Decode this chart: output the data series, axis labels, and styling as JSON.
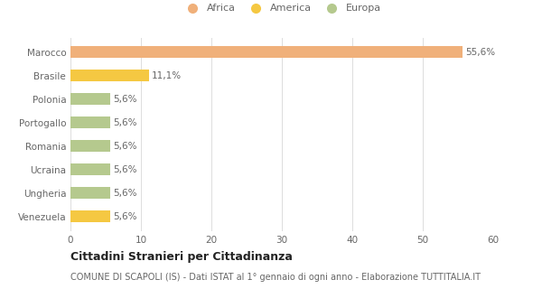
{
  "categories": [
    "Venezuela",
    "Ungheria",
    "Ucraina",
    "Romania",
    "Portogallo",
    "Polonia",
    "Brasile",
    "Marocco"
  ],
  "values": [
    5.6,
    5.6,
    5.6,
    5.6,
    5.6,
    5.6,
    11.1,
    55.6
  ],
  "colors": [
    "#f5c842",
    "#b5c98e",
    "#b5c98e",
    "#b5c98e",
    "#b5c98e",
    "#b5c98e",
    "#f5c842",
    "#f0b07a"
  ],
  "labels": [
    "5,6%",
    "5,6%",
    "5,6%",
    "5,6%",
    "5,6%",
    "5,6%",
    "11,1%",
    "55,6%"
  ],
  "legend_labels": [
    "Africa",
    "America",
    "Europa"
  ],
  "legend_colors": [
    "#f0b07a",
    "#f5c842",
    "#b5c98e"
  ],
  "title": "Cittadini Stranieri per Cittadinanza",
  "subtitle": "COMUNE DI SCAPOLI (IS) - Dati ISTAT al 1° gennaio di ogni anno - Elaborazione TUTTITALIA.IT",
  "xlim": [
    0,
    60
  ],
  "xticks": [
    0,
    10,
    20,
    30,
    40,
    50,
    60
  ],
  "background_color": "#ffffff",
  "bar_background": "#ffffff",
  "grid_color": "#dddddd",
  "text_color": "#666666",
  "label_fontsize": 7.5,
  "tick_fontsize": 7.5,
  "title_fontsize": 9,
  "subtitle_fontsize": 7
}
